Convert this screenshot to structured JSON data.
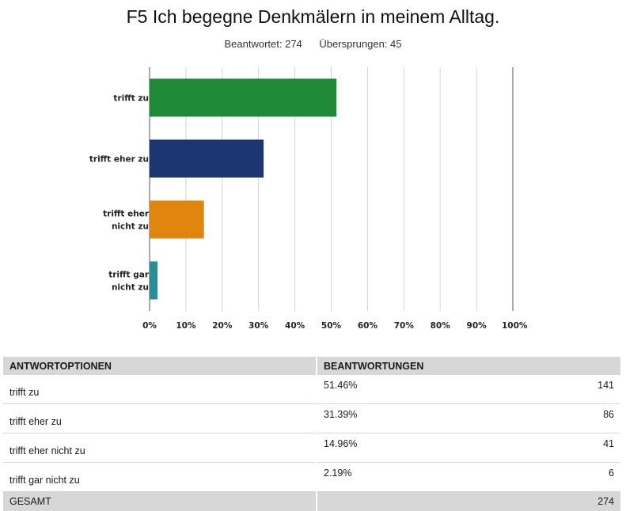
{
  "chart_data": {
    "type": "bar",
    "orientation": "horizontal",
    "title": "F5 Ich begegne Denkmälern in meinem Alltag.",
    "answered_label": "Beantwortet: 274",
    "skipped_label": "Übersprungen: 45",
    "categories": [
      "trifft zu",
      "trifft eher zu",
      "trifft eher nicht zu",
      "trifft gar nicht zu"
    ],
    "category_lines": [
      [
        "trifft zu"
      ],
      [
        "trifft eher zu"
      ],
      [
        "trifft eher",
        "nicht zu"
      ],
      [
        "trifft gar",
        "nicht zu"
      ]
    ],
    "values": [
      51.46,
      31.39,
      14.96,
      2.19
    ],
    "colors": [
      "#1e8a37",
      "#1b3670",
      "#e0860f",
      "#2b8e96"
    ],
    "xlim": [
      0,
      100
    ],
    "ticks": [
      "0%",
      "10%",
      "20%",
      "30%",
      "40%",
      "50%",
      "60%",
      "70%",
      "80%",
      "90%",
      "100%"
    ],
    "grid": true
  },
  "table": {
    "header_option": "ANTWORTOPTIONEN",
    "header_responses": "BEANTWORTUNGEN",
    "rows": [
      {
        "option": "trifft zu",
        "percent": "51.46%",
        "count": "141"
      },
      {
        "option": "trifft eher zu",
        "percent": "31.39%",
        "count": "86"
      },
      {
        "option": "trifft eher nicht zu",
        "percent": "14.96%",
        "count": "41"
      },
      {
        "option": "trifft gar nicht zu",
        "percent": "2.19%",
        "count": "6"
      }
    ],
    "total_label": "GESAMT",
    "total_count": "274"
  }
}
